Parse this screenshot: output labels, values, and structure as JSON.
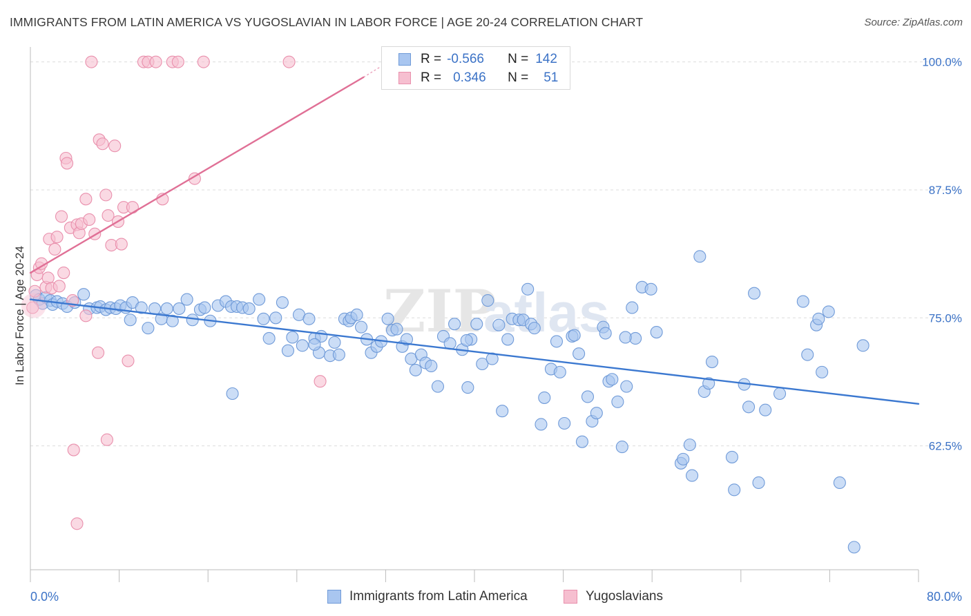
{
  "header": {
    "title": "IMMIGRANTS FROM LATIN AMERICA VS YUGOSLAVIAN IN LABOR FORCE | AGE 20-24 CORRELATION CHART",
    "source": "Source: ZipAtlas.com"
  },
  "watermark": {
    "part1": "ZIP",
    "part2": "atlas"
  },
  "legend": {
    "rows": [
      {
        "r_label": "R =",
        "r_value": "-0.566",
        "n_label": "N =",
        "n_value": "142"
      },
      {
        "r_label": "R =",
        "r_value": "0.346",
        "n_label": "N =",
        "n_value": "51"
      }
    ]
  },
  "colors": {
    "blue_fill": "#a9c6f0",
    "blue_stroke": "#6f9ad8",
    "blue_line": "#3b78d0",
    "pink_fill": "#f6bfd0",
    "pink_stroke": "#e98fac",
    "pink_line": "#e07096",
    "tick_label": "#3b72c6",
    "grid": "#dcdcdc",
    "axis": "#bbbbbb"
  },
  "chart_data": {
    "type": "scatter",
    "xlabel": "",
    "ylabel": "In Labor Force | Age 20-24",
    "xlim": [
      0,
      80
    ],
    "ylim": [
      50.4,
      102
    ],
    "x_tick_labels": [
      {
        "value": 0,
        "label": "0.0%"
      },
      {
        "value": 80,
        "label": "80.0%"
      }
    ],
    "y_tick_labels": [
      {
        "value": 100,
        "label": "100.0%"
      },
      {
        "value": 87.5,
        "label": "87.5%"
      },
      {
        "value": 75,
        "label": "75.0%"
      },
      {
        "value": 62.5,
        "label": "62.5%"
      }
    ],
    "x_minor_ticks": [
      0,
      8,
      16,
      24,
      32,
      40,
      48,
      56,
      64,
      72,
      80
    ],
    "grid": true,
    "legend_position": "top-center",
    "series": [
      {
        "name": "Immigrants from Latin America",
        "color": "blue",
        "points": [
          [
            0.5,
            77.2
          ],
          [
            0.8,
            76.8
          ],
          [
            1.1,
            76.4
          ],
          [
            1.4,
            77.0
          ],
          [
            1.8,
            76.7
          ],
          [
            2.0,
            76.3
          ],
          [
            2.4,
            76.6
          ],
          [
            2.9,
            76.4
          ],
          [
            3.3,
            76.1
          ],
          [
            4.0,
            76.5
          ],
          [
            4.8,
            77.3
          ],
          [
            5.3,
            75.9
          ],
          [
            6.0,
            76.0
          ],
          [
            6.3,
            76.1
          ],
          [
            6.8,
            75.8
          ],
          [
            7.2,
            76.0
          ],
          [
            7.7,
            75.9
          ],
          [
            8.1,
            76.2
          ],
          [
            8.6,
            76.0
          ],
          [
            9.2,
            76.5
          ],
          [
            9.0,
            74.8
          ],
          [
            10.0,
            76.0
          ],
          [
            10.6,
            74.0
          ],
          [
            11.2,
            75.9
          ],
          [
            11.8,
            74.9
          ],
          [
            12.3,
            75.9
          ],
          [
            12.8,
            74.7
          ],
          [
            13.4,
            75.9
          ],
          [
            14.1,
            76.8
          ],
          [
            14.6,
            74.8
          ],
          [
            15.3,
            75.8
          ],
          [
            15.7,
            76.0
          ],
          [
            16.2,
            74.7
          ],
          [
            16.9,
            76.2
          ],
          [
            17.6,
            76.6
          ],
          [
            18.1,
            76.1
          ],
          [
            18.6,
            76.1
          ],
          [
            19.1,
            76.0
          ],
          [
            19.7,
            75.9
          ],
          [
            20.6,
            76.8
          ],
          [
            21.0,
            74.9
          ],
          [
            21.5,
            73.0
          ],
          [
            22.1,
            75.0
          ],
          [
            22.7,
            76.5
          ],
          [
            23.2,
            71.8
          ],
          [
            23.6,
            73.1
          ],
          [
            24.2,
            75.3
          ],
          [
            24.5,
            72.3
          ],
          [
            25.1,
            74.9
          ],
          [
            25.6,
            73.0
          ],
          [
            26.0,
            71.6
          ],
          [
            26.2,
            73.2
          ],
          [
            27.0,
            71.3
          ],
          [
            27.4,
            72.6
          ],
          [
            27.8,
            71.4
          ],
          [
            28.3,
            74.9
          ],
          [
            28.7,
            74.7
          ],
          [
            28.9,
            75.0
          ],
          [
            29.4,
            75.3
          ],
          [
            29.8,
            74.1
          ],
          [
            18.2,
            67.6
          ],
          [
            30.3,
            72.9
          ],
          [
            30.7,
            71.6
          ],
          [
            31.2,
            72.2
          ],
          [
            31.6,
            72.7
          ],
          [
            32.2,
            74.9
          ],
          [
            32.6,
            73.8
          ],
          [
            33.0,
            73.9
          ],
          [
            33.5,
            72.2
          ],
          [
            33.9,
            72.9
          ],
          [
            34.3,
            71.0
          ],
          [
            34.7,
            69.9
          ],
          [
            35.2,
            71.4
          ],
          [
            35.6,
            70.6
          ],
          [
            36.1,
            70.3
          ],
          [
            36.7,
            68.3
          ],
          [
            37.2,
            73.2
          ],
          [
            37.8,
            72.5
          ],
          [
            38.2,
            74.4
          ],
          [
            38.9,
            71.9
          ],
          [
            39.4,
            68.2
          ],
          [
            39.7,
            72.9
          ],
          [
            40.2,
            74.4
          ],
          [
            40.7,
            70.5
          ],
          [
            41.2,
            76.7
          ],
          [
            41.6,
            71.0
          ],
          [
            42.2,
            74.3
          ],
          [
            42.5,
            65.9
          ],
          [
            43.0,
            72.9
          ],
          [
            43.4,
            74.9
          ],
          [
            44.0,
            74.8
          ],
          [
            44.4,
            74.8
          ],
          [
            44.8,
            77.8
          ],
          [
            45.1,
            74.4
          ],
          [
            45.4,
            74.0
          ],
          [
            46.0,
            64.6
          ],
          [
            46.3,
            67.2
          ],
          [
            46.9,
            70.0
          ],
          [
            47.4,
            72.7
          ],
          [
            47.7,
            69.7
          ],
          [
            48.1,
            64.7
          ],
          [
            48.8,
            73.2
          ],
          [
            49.0,
            73.3
          ],
          [
            49.4,
            71.5
          ],
          [
            49.7,
            62.9
          ],
          [
            50.2,
            67.3
          ],
          [
            50.6,
            64.9
          ],
          [
            51.0,
            65.7
          ],
          [
            51.6,
            74.1
          ],
          [
            52.1,
            68.8
          ],
          [
            52.4,
            69.0
          ],
          [
            52.9,
            66.8
          ],
          [
            53.3,
            62.4
          ],
          [
            53.7,
            68.3
          ],
          [
            54.2,
            76.0
          ],
          [
            54.5,
            73.0
          ],
          [
            55.1,
            78.0
          ],
          [
            55.9,
            77.8
          ],
          [
            56.4,
            73.6
          ],
          [
            58.6,
            60.8
          ],
          [
            58.8,
            61.2
          ],
          [
            59.4,
            62.6
          ],
          [
            59.6,
            59.6
          ],
          [
            60.3,
            81.0
          ],
          [
            60.7,
            67.8
          ],
          [
            61.1,
            68.6
          ],
          [
            61.4,
            70.7
          ],
          [
            63.2,
            61.4
          ],
          [
            63.4,
            58.2
          ],
          [
            64.3,
            68.5
          ],
          [
            64.7,
            66.3
          ],
          [
            65.2,
            77.4
          ],
          [
            65.6,
            58.9
          ],
          [
            66.2,
            66.0
          ],
          [
            67.5,
            67.6
          ],
          [
            69.6,
            76.6
          ],
          [
            70.0,
            71.4
          ],
          [
            70.8,
            74.3
          ],
          [
            71.0,
            74.9
          ],
          [
            71.3,
            69.7
          ],
          [
            71.9,
            75.6
          ],
          [
            72.9,
            58.9
          ],
          [
            75.0,
            72.3
          ],
          [
            74.2,
            52.6
          ],
          [
            25.6,
            72.4
          ],
          [
            39.3,
            72.8
          ],
          [
            51.8,
            73.5
          ],
          [
            53.6,
            73.1
          ]
        ]
      },
      {
        "name": "Yugoslavians",
        "color": "pink",
        "points": [
          [
            0.2,
            76.0
          ],
          [
            0.4,
            77.6
          ],
          [
            0.6,
            79.2
          ],
          [
            0.8,
            79.9
          ],
          [
            1.0,
            80.3
          ],
          [
            1.4,
            78.0
          ],
          [
            1.6,
            78.9
          ],
          [
            1.9,
            77.9
          ],
          [
            1.7,
            82.7
          ],
          [
            2.2,
            81.7
          ],
          [
            2.4,
            82.9
          ],
          [
            2.6,
            78.1
          ],
          [
            2.8,
            84.9
          ],
          [
            3.0,
            79.4
          ],
          [
            3.2,
            90.6
          ],
          [
            3.3,
            90.1
          ],
          [
            3.6,
            83.8
          ],
          [
            3.8,
            76.7
          ],
          [
            4.2,
            84.1
          ],
          [
            4.4,
            83.3
          ],
          [
            4.6,
            84.2
          ],
          [
            5.0,
            86.6
          ],
          [
            5.3,
            84.6
          ],
          [
            5.8,
            83.2
          ],
          [
            6.2,
            92.4
          ],
          [
            6.5,
            92.0
          ],
          [
            6.8,
            87.0
          ],
          [
            7.0,
            85.0
          ],
          [
            7.3,
            82.1
          ],
          [
            7.6,
            91.8
          ],
          [
            7.9,
            84.4
          ],
          [
            8.2,
            82.2
          ],
          [
            8.4,
            85.8
          ],
          [
            9.2,
            85.8
          ],
          [
            10.2,
            100.0
          ],
          [
            10.6,
            100.0
          ],
          [
            11.3,
            100.0
          ],
          [
            11.9,
            86.6
          ],
          [
            12.8,
            100.0
          ],
          [
            13.3,
            100.0
          ],
          [
            14.8,
            88.6
          ],
          [
            15.6,
            100.0
          ],
          [
            5.5,
            100.0
          ],
          [
            23.3,
            100.0
          ],
          [
            8.8,
            70.8
          ],
          [
            6.1,
            71.6
          ],
          [
            5.0,
            75.2
          ],
          [
            3.9,
            62.1
          ],
          [
            6.9,
            63.1
          ],
          [
            4.2,
            54.9
          ],
          [
            26.1,
            68.8
          ]
        ]
      }
    ],
    "trend_lines": [
      {
        "series": "Immigrants from Latin America",
        "from": [
          0,
          76.8
        ],
        "to": [
          80,
          66.6
        ]
      },
      {
        "series": "Yugoslavians",
        "from": [
          0,
          79.4
        ],
        "to": [
          30,
          98.5
        ],
        "dashed_to": [
          31.5,
          99.5
        ]
      }
    ]
  },
  "bottom_legend": {
    "items": [
      {
        "label": "Immigrants from Latin America"
      },
      {
        "label": "Yugoslavians"
      }
    ]
  }
}
